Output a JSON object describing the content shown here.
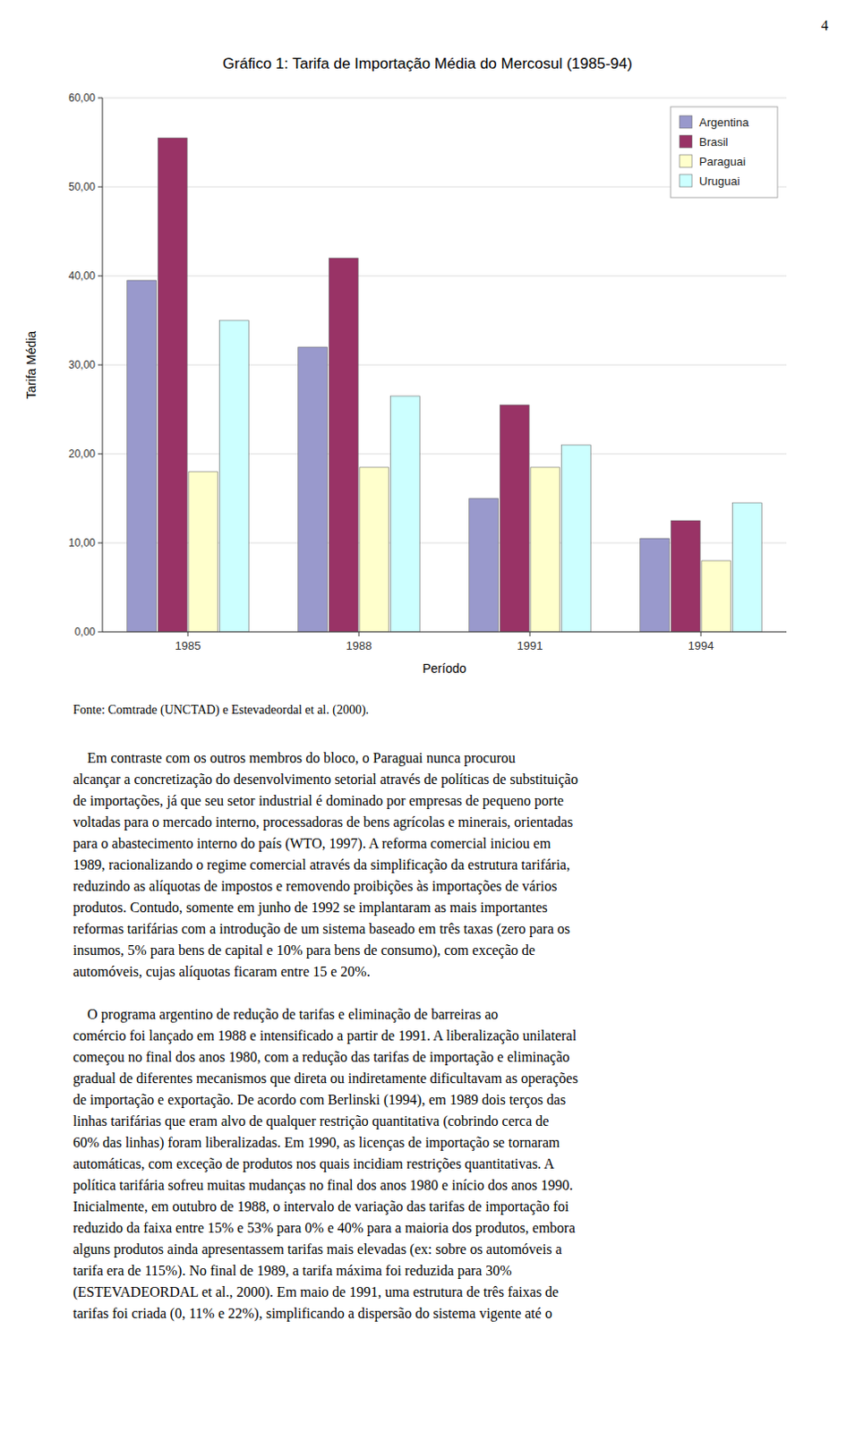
{
  "page_number": "4",
  "source": "Fonte: Comtrade (UNCTAD) e Estevadeordal et al. (2000).",
  "paragraphs": [
    [
      "    Em contraste com os outros membros do bloco, o Paraguai nunca procurou",
      "alcançar a concretização do desenvolvimento setorial através de políticas de substituição",
      "de importações, já que seu setor industrial é dominado por empresas de pequeno porte",
      "voltadas para o mercado interno, processadoras de bens agrícolas e minerais, orientadas",
      "para o abastecimento interno do país (WTO, 1997). A reforma comercial iniciou em",
      "1989, racionalizando o regime comercial através da simplificação da estrutura tarifária,",
      "reduzindo as alíquotas de impostos e removendo proibições às importações de vários",
      "produtos. Contudo, somente em junho de 1992 se implantaram as mais importantes",
      "reformas tarifárias com a introdução de um sistema baseado em três taxas (zero para os",
      "insumos, 5% para bens de capital e 10% para bens de consumo), com exceção de",
      "automóveis, cujas alíquotas ficaram entre 15 e 20%."
    ],
    [
      "    O programa argentino de redução de tarifas e eliminação de barreiras ao",
      "comércio foi lançado em 1988 e intensificado a partir de 1991. A liberalização unilateral",
      "começou no final dos anos 1980, com a redução das tarifas de importação e eliminação",
      "gradual de diferentes mecanismos que direta ou indiretamente dificultavam as operações",
      "de importação e exportação. De acordo com Berlinski (1994), em 1989 dois terços das",
      "linhas tarifárias que eram alvo de qualquer restrição quantitativa (cobrindo cerca de",
      "60% das linhas) foram liberalizadas. Em 1990, as licenças de importação se tornaram",
      "automáticas, com exceção de produtos nos quais incidiam restrições quantitativas. A",
      "política tarifária sofreu muitas mudanças no final dos anos 1980 e início dos anos 1990.",
      "Inicialmente, em outubro de 1988, o intervalo de variação das tarifas de importação foi",
      "reduzido da faixa entre 15% e 53% para 0% e 40% para a maioria dos produtos, embora",
      "alguns produtos ainda apresentassem tarifas mais elevadas (ex: sobre os automóveis a",
      "tarifa era de 115%). No final de 1989, a tarifa máxima foi reduzida para 30%",
      "(ESTEVADEORDAL et al., 2000). Em maio de 1991, uma estrutura de três faixas de",
      "tarifas foi criada (0, 11% e 22%), simplificando a dispersão do sistema vigente até o"
    ]
  ],
  "chart_data": {
    "type": "bar",
    "title": "Gráfico 1: Tarifa de Importação Média do Mercosul (1985-94)",
    "xlabel": "Período",
    "ylabel": "Tarifa Média",
    "categories": [
      "1985",
      "1988",
      "1991",
      "1994"
    ],
    "series": [
      {
        "name": "Argentina",
        "color": "#9999CC",
        "values": [
          39.5,
          32.0,
          15.0,
          10.5
        ]
      },
      {
        "name": "Brasil",
        "color": "#993366",
        "values": [
          55.5,
          42.0,
          25.5,
          12.5
        ]
      },
      {
        "name": "Paraguai",
        "color": "#FFFFCC",
        "values": [
          18.0,
          18.5,
          18.5,
          8.0
        ]
      },
      {
        "name": "Uruguai",
        "color": "#CCFFFF",
        "values": [
          35.0,
          26.5,
          21.0,
          14.5
        ]
      }
    ],
    "ylim": [
      0,
      60
    ],
    "yticks": [
      {
        "value": 0,
        "label": "0,00"
      },
      {
        "value": 10,
        "label": "10,00"
      },
      {
        "value": 20,
        "label": "20,00"
      },
      {
        "value": 30,
        "label": "30,00"
      },
      {
        "value": 40,
        "label": "40,00"
      },
      {
        "value": 50,
        "label": "50,00"
      },
      {
        "value": 60,
        "label": "60,00"
      }
    ],
    "grid": true,
    "legend": "upper right"
  }
}
